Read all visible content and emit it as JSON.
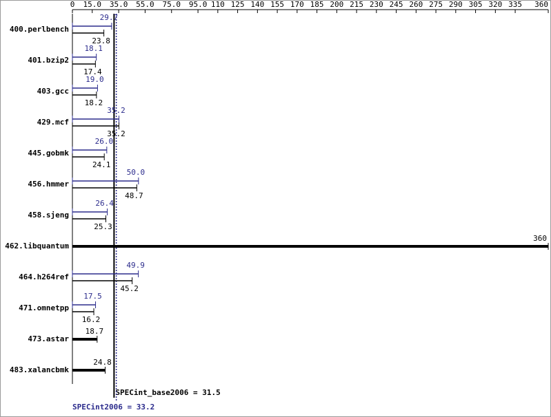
{
  "chart_data": {
    "type": "hbar",
    "categories": [
      "400.perlbench",
      "401.bzip2",
      "403.gcc",
      "429.mcf",
      "445.gobmk",
      "456.hmmer",
      "458.sjeng",
      "462.libquantum",
      "464.h264ref",
      "471.omnetpp",
      "473.astar",
      "483.xalancbmk"
    ],
    "series": [
      {
        "name": "SPECint2006",
        "color": "#2b2b8c",
        "values": [
          29.7,
          18.1,
          19.0,
          35.2,
          26.0,
          50.0,
          26.4,
          null,
          49.9,
          17.5,
          null,
          null
        ],
        "value_labels": [
          "29.7",
          "18.1",
          "19.0",
          "35.2",
          "26.0",
          "50.0",
          "26.4",
          null,
          "49.9",
          "17.5",
          null,
          null
        ]
      },
      {
        "name": "SPECint_base2006",
        "color": "#000000",
        "values": [
          23.8,
          17.4,
          18.2,
          35.2,
          24.1,
          48.7,
          25.3,
          360,
          45.2,
          16.2,
          18.7,
          24.8
        ]
      }
    ],
    "xlim": [
      0,
      360
    ],
    "xticks": [
      0,
      {
        "value": 15,
        "label": "15.0"
      },
      {
        "value": 35,
        "label": "35.0"
      },
      {
        "value": 55,
        "label": "55.0"
      },
      {
        "value": 75,
        "label": "75.0"
      },
      {
        "value": 95,
        "label": "95.0"
      },
      110,
      125,
      140,
      155,
      170,
      185,
      200,
      215,
      230,
      245,
      260,
      275,
      290,
      305,
      320,
      335,
      360
    ],
    "reference_lines": [
      {
        "label": "SPECint_base2006 = 31.5",
        "value": 31.5,
        "color": "#000000",
        "style": "solid"
      },
      {
        "label": "SPECint2006 = 33.2",
        "value": 33.2,
        "color": "#2b2b8c",
        "style": "dotted"
      }
    ]
  }
}
